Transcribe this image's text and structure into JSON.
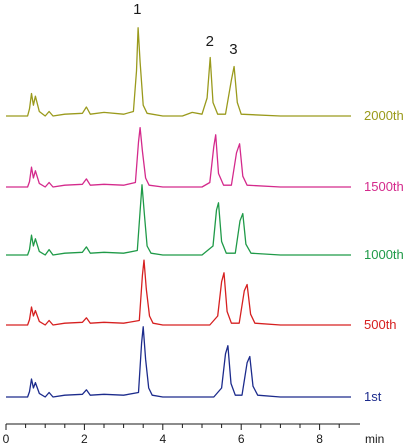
{
  "chart_data": {
    "type": "line",
    "title": "",
    "xlabel": "min",
    "ylabel": "",
    "xlim": [
      0,
      8.8
    ],
    "x_ticks": [
      "0",
      "2",
      "4",
      "6",
      "8"
    ],
    "grid": false,
    "peak_labels": [
      "1",
      "2",
      "3"
    ],
    "series": [
      {
        "name": "2000th",
        "color": "#9a9a1c",
        "points": [
          [
            0.0,
            0.0
          ],
          [
            0.55,
            0.0
          ],
          [
            0.6,
            0.08
          ],
          [
            0.65,
            0.25
          ],
          [
            0.7,
            0.12
          ],
          [
            0.75,
            0.22
          ],
          [
            0.85,
            0.05
          ],
          [
            1.0,
            0.0
          ],
          [
            1.1,
            0.05
          ],
          [
            1.2,
            0.0
          ],
          [
            1.5,
            0.02
          ],
          [
            1.95,
            0.03
          ],
          [
            2.05,
            0.1
          ],
          [
            2.15,
            0.02
          ],
          [
            2.5,
            0.04
          ],
          [
            3.0,
            0.02
          ],
          [
            3.25,
            0.05
          ],
          [
            3.33,
            0.5
          ],
          [
            3.37,
            0.98
          ],
          [
            3.42,
            0.6
          ],
          [
            3.5,
            0.12
          ],
          [
            3.6,
            0.03
          ],
          [
            4.0,
            0.0
          ],
          [
            4.5,
            0.0
          ],
          [
            4.75,
            0.04
          ],
          [
            5.0,
            0.02
          ],
          [
            5.13,
            0.2
          ],
          [
            5.21,
            0.65
          ],
          [
            5.28,
            0.15
          ],
          [
            5.4,
            0.02
          ],
          [
            5.6,
            0.02
          ],
          [
            5.75,
            0.4
          ],
          [
            5.82,
            0.55
          ],
          [
            5.9,
            0.15
          ],
          [
            6.0,
            0.02
          ],
          [
            7.0,
            0.0
          ],
          [
            8.2,
            0.0
          ],
          [
            8.8,
            0.0
          ]
        ]
      },
      {
        "name": "1500th",
        "color": "#d42a8c",
        "points": [
          [
            0.0,
            0.0
          ],
          [
            0.55,
            0.0
          ],
          [
            0.6,
            0.06
          ],
          [
            0.65,
            0.22
          ],
          [
            0.7,
            0.1
          ],
          [
            0.75,
            0.18
          ],
          [
            0.85,
            0.04
          ],
          [
            1.0,
            0.0
          ],
          [
            1.1,
            0.05
          ],
          [
            1.2,
            0.0
          ],
          [
            1.5,
            0.02
          ],
          [
            1.95,
            0.03
          ],
          [
            2.05,
            0.09
          ],
          [
            2.15,
            0.02
          ],
          [
            2.5,
            0.03
          ],
          [
            3.0,
            0.02
          ],
          [
            3.3,
            0.05
          ],
          [
            3.38,
            0.5
          ],
          [
            3.42,
            0.66
          ],
          [
            3.48,
            0.4
          ],
          [
            3.56,
            0.1
          ],
          [
            3.65,
            0.02
          ],
          [
            4.0,
            0.0
          ],
          [
            5.0,
            0.0
          ],
          [
            5.2,
            0.05
          ],
          [
            5.3,
            0.45
          ],
          [
            5.35,
            0.58
          ],
          [
            5.42,
            0.15
          ],
          [
            5.55,
            0.02
          ],
          [
            5.75,
            0.02
          ],
          [
            5.88,
            0.38
          ],
          [
            5.96,
            0.48
          ],
          [
            6.04,
            0.12
          ],
          [
            6.15,
            0.02
          ],
          [
            7.0,
            0.0
          ],
          [
            8.8,
            0.0
          ]
        ]
      },
      {
        "name": "1000th",
        "color": "#1f9a48",
        "points": [
          [
            0.0,
            0.0
          ],
          [
            0.55,
            0.0
          ],
          [
            0.6,
            0.06
          ],
          [
            0.65,
            0.22
          ],
          [
            0.7,
            0.1
          ],
          [
            0.75,
            0.18
          ],
          [
            0.85,
            0.04
          ],
          [
            1.0,
            0.0
          ],
          [
            1.1,
            0.06
          ],
          [
            1.2,
            0.0
          ],
          [
            1.5,
            0.02
          ],
          [
            1.95,
            0.03
          ],
          [
            2.05,
            0.09
          ],
          [
            2.15,
            0.02
          ],
          [
            2.5,
            0.03
          ],
          [
            3.0,
            0.02
          ],
          [
            3.35,
            0.05
          ],
          [
            3.43,
            0.55
          ],
          [
            3.47,
            0.78
          ],
          [
            3.53,
            0.45
          ],
          [
            3.6,
            0.1
          ],
          [
            3.7,
            0.02
          ],
          [
            4.0,
            0.0
          ],
          [
            5.0,
            0.0
          ],
          [
            5.28,
            0.1
          ],
          [
            5.37,
            0.5
          ],
          [
            5.42,
            0.58
          ],
          [
            5.5,
            0.15
          ],
          [
            5.62,
            0.02
          ],
          [
            5.85,
            0.02
          ],
          [
            5.97,
            0.38
          ],
          [
            6.04,
            0.46
          ],
          [
            6.12,
            0.12
          ],
          [
            6.25,
            0.02
          ],
          [
            7.0,
            0.0
          ],
          [
            8.8,
            0.0
          ]
        ]
      },
      {
        "name": "500th",
        "color": "#d62020",
        "points": [
          [
            0.0,
            0.0
          ],
          [
            0.55,
            0.0
          ],
          [
            0.6,
            0.06
          ],
          [
            0.65,
            0.2
          ],
          [
            0.7,
            0.1
          ],
          [
            0.75,
            0.16
          ],
          [
            0.85,
            0.04
          ],
          [
            1.0,
            0.0
          ],
          [
            1.1,
            0.05
          ],
          [
            1.2,
            0.0
          ],
          [
            1.5,
            0.02
          ],
          [
            1.95,
            0.03
          ],
          [
            2.05,
            0.08
          ],
          [
            2.15,
            0.02
          ],
          [
            2.5,
            0.03
          ],
          [
            3.0,
            0.02
          ],
          [
            3.4,
            0.05
          ],
          [
            3.48,
            0.55
          ],
          [
            3.52,
            0.72
          ],
          [
            3.58,
            0.4
          ],
          [
            3.66,
            0.1
          ],
          [
            3.75,
            0.02
          ],
          [
            4.0,
            0.0
          ],
          [
            5.2,
            0.0
          ],
          [
            5.4,
            0.1
          ],
          [
            5.5,
            0.48
          ],
          [
            5.56,
            0.58
          ],
          [
            5.64,
            0.15
          ],
          [
            5.75,
            0.02
          ],
          [
            5.95,
            0.02
          ],
          [
            6.08,
            0.38
          ],
          [
            6.15,
            0.45
          ],
          [
            6.24,
            0.12
          ],
          [
            6.35,
            0.02
          ],
          [
            7.0,
            0.0
          ],
          [
            8.8,
            0.0
          ]
        ]
      },
      {
        "name": "1st",
        "color": "#1c2b8c",
        "points": [
          [
            0.0,
            0.0
          ],
          [
            0.55,
            0.0
          ],
          [
            0.6,
            0.06
          ],
          [
            0.65,
            0.2
          ],
          [
            0.7,
            0.1
          ],
          [
            0.75,
            0.16
          ],
          [
            0.85,
            0.04
          ],
          [
            1.0,
            0.0
          ],
          [
            1.1,
            0.05
          ],
          [
            1.2,
            0.0
          ],
          [
            1.5,
            0.02
          ],
          [
            1.95,
            0.03
          ],
          [
            2.05,
            0.08
          ],
          [
            2.15,
            0.02
          ],
          [
            2.5,
            0.03
          ],
          [
            3.0,
            0.02
          ],
          [
            3.38,
            0.05
          ],
          [
            3.46,
            0.6
          ],
          [
            3.5,
            0.78
          ],
          [
            3.56,
            0.42
          ],
          [
            3.64,
            0.1
          ],
          [
            3.73,
            0.02
          ],
          [
            4.0,
            0.0
          ],
          [
            5.3,
            0.0
          ],
          [
            5.5,
            0.1
          ],
          [
            5.6,
            0.48
          ],
          [
            5.66,
            0.57
          ],
          [
            5.74,
            0.15
          ],
          [
            5.85,
            0.02
          ],
          [
            6.02,
            0.02
          ],
          [
            6.15,
            0.38
          ],
          [
            6.22,
            0.45
          ],
          [
            6.3,
            0.12
          ],
          [
            6.42,
            0.02
          ],
          [
            7.0,
            0.0
          ],
          [
            8.8,
            0.0
          ]
        ]
      }
    ]
  }
}
